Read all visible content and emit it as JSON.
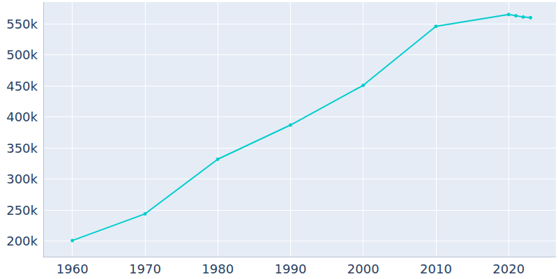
{
  "chart_data": {
    "type": "line",
    "x": [
      1960,
      1970,
      1980,
      1990,
      2000,
      2010,
      2020,
      2021,
      2022,
      2023
    ],
    "values": [
      201000,
      244000,
      332000,
      387000,
      451000,
      546000,
      565000,
      563000,
      561000,
      560000
    ],
    "color": "#00cdcd",
    "marker": "circle",
    "line_style": "solid",
    "xlim": [
      1956,
      2026.5
    ],
    "xticks": [
      1960,
      1970,
      1980,
      1990,
      2000,
      2010,
      2020
    ],
    "ylim": [
      175000,
      585000
    ],
    "yticks": [
      {
        "value": 200000,
        "label": "200k"
      },
      {
        "value": 250000,
        "label": "250k"
      },
      {
        "value": 300000,
        "label": "300k"
      },
      {
        "value": 350000,
        "label": "350k"
      },
      {
        "value": 400000,
        "label": "400k"
      },
      {
        "value": 450000,
        "label": "450k"
      },
      {
        "value": 500000,
        "label": "500k"
      },
      {
        "value": 550000,
        "label": "550k"
      }
    ],
    "grid": true
  }
}
